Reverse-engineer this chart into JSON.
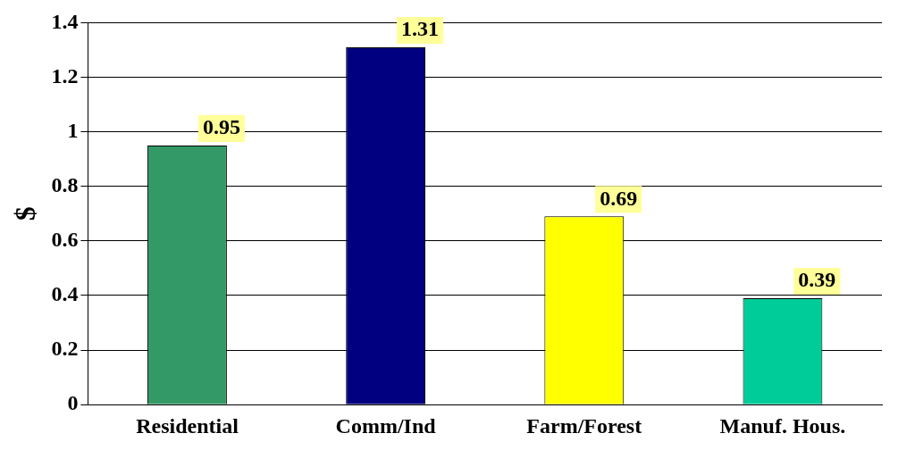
{
  "chart_data": {
    "type": "bar",
    "ylabel": "$",
    "categories": [
      "Residential",
      "Comm/Ind",
      "Farm/Forest",
      "Manuf. Hous."
    ],
    "values": [
      0.95,
      1.31,
      0.69,
      0.39
    ],
    "colors": [
      "#339966",
      "#000080",
      "#ffff00",
      "#00cc99"
    ],
    "ylim": [
      0,
      1.4
    ],
    "yticks": [
      0,
      0.2,
      0.4,
      0.6,
      0.8,
      1,
      1.2,
      1.4
    ],
    "grid": "y",
    "data_labels": true
  }
}
